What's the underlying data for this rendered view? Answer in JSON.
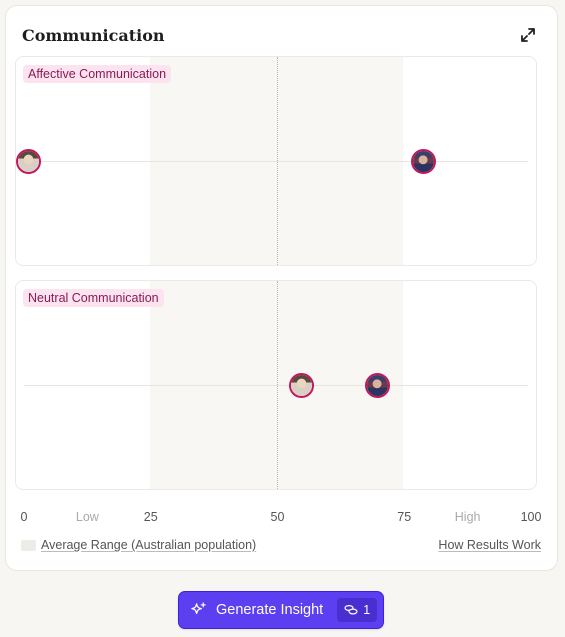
{
  "card": {
    "title": "Communication"
  },
  "panels": [
    {
      "label": "Affective Communication",
      "markers": [
        {
          "person": "A",
          "score": 1
        },
        {
          "person": "B",
          "score": 79
        }
      ]
    },
    {
      "label": "Neutral Communication",
      "markers": [
        {
          "person": "A",
          "score": 55
        },
        {
          "person": "B",
          "score": 70
        }
      ]
    }
  ],
  "axis": {
    "ticks": [
      {
        "label": "0",
        "value": 0
      },
      {
        "label": "Low",
        "value": 12.5,
        "muted": true
      },
      {
        "label": "25",
        "value": 25
      },
      {
        "label": "50",
        "value": 50
      },
      {
        "label": "75",
        "value": 75
      },
      {
        "label": "High",
        "value": 87.5,
        "muted": true
      },
      {
        "label": "100",
        "value": 100
      }
    ],
    "average_range": [
      25,
      75
    ]
  },
  "legend": {
    "label": "Average Range (Australian population)"
  },
  "links": {
    "how": "How Results Work"
  },
  "button": {
    "label": "Generate Insight",
    "count": "1"
  },
  "icons": {
    "expand": "expand-icon",
    "sparkle": "sparkle-icon",
    "coins": "coins-icon"
  },
  "colors": {
    "accent": "#5b3ff0",
    "label_bg": "#fbe4ef",
    "label_text": "#8a1b55",
    "marker_border": "#c2185b"
  }
}
